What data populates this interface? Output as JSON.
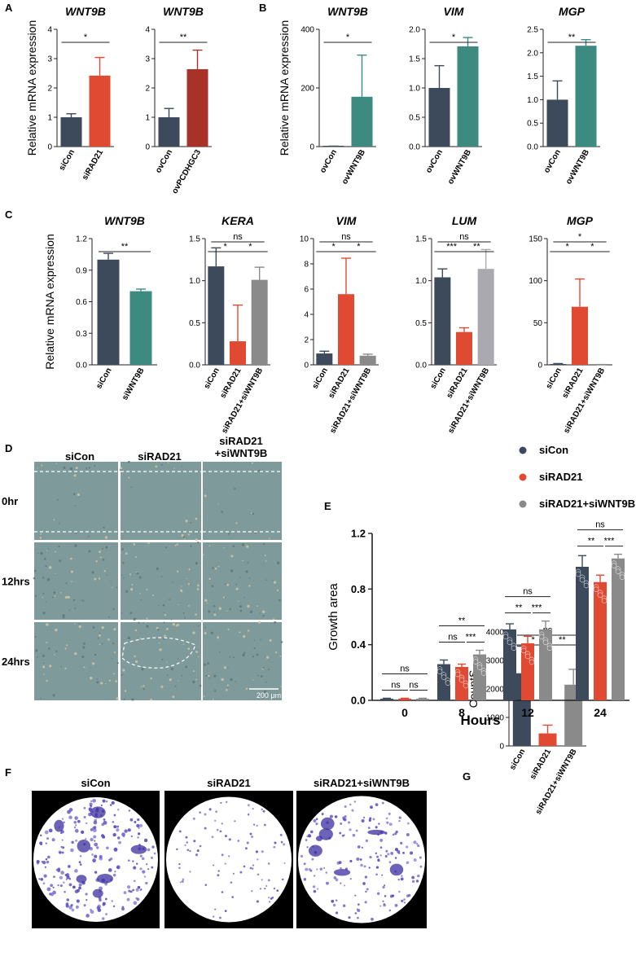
{
  "panel_letters": [
    "A",
    "B",
    "C",
    "D",
    "E",
    "F",
    "G"
  ],
  "colors": {
    "dark": "#3d4a5c",
    "red": "#e04a32",
    "darkred": "#a83228",
    "teal": "#3c8a80",
    "gray": "#8a8a8a",
    "lightgray": "#a9a9af",
    "wound_bg": "#7f9a9a",
    "crystal_bg": "#ffffff",
    "crystal_dot": "#5a4cc0"
  },
  "ylabel_mrna": "Relative mRNA expression",
  "chart_data": [
    {
      "id": "A1",
      "type": "bar",
      "title": "WNT9B",
      "categories": [
        "siCon",
        "siRAD21"
      ],
      "values": [
        1.0,
        2.42
      ],
      "errors": [
        0.12,
        0.62
      ],
      "colors": [
        "#3d4a5c",
        "#e04a32"
      ],
      "ylim": [
        0,
        4
      ],
      "yticks": [
        "0",
        "1",
        "2",
        "3",
        "4"
      ],
      "ylabel": "Relative mRNA expression",
      "sig": [
        {
          "a": 0,
          "b": 1,
          "label": "*"
        }
      ]
    },
    {
      "id": "A2",
      "type": "bar",
      "title": "WNT9B",
      "categories": [
        "ovCon",
        "ovPCDHGC3"
      ],
      "values": [
        1.0,
        2.64
      ],
      "errors": [
        0.3,
        0.65
      ],
      "colors": [
        "#3d4a5c",
        "#a83228"
      ],
      "ylim": [
        0,
        4
      ],
      "yticks": [
        "0",
        "1",
        "2",
        "3",
        "4"
      ],
      "sig": [
        {
          "a": 0,
          "b": 1,
          "label": "**"
        }
      ]
    },
    {
      "id": "B1",
      "type": "bar",
      "title": "WNT9B",
      "categories": [
        "ovCon",
        "ovWNT9B"
      ],
      "values": [
        1.0,
        170
      ],
      "errors": [
        0.5,
        142
      ],
      "colors": [
        "#3d4a5c",
        "#3c8a80"
      ],
      "ylim": [
        0,
        400
      ],
      "yticks": [
        "0",
        "200",
        "400"
      ],
      "ylabel": "Relative mRNA expression",
      "sig": [
        {
          "a": 0,
          "b": 1,
          "label": "*"
        }
      ]
    },
    {
      "id": "B2",
      "type": "bar",
      "title": "VIM",
      "categories": [
        "ovCon",
        "ovWNT9B"
      ],
      "values": [
        1.0,
        1.71
      ],
      "errors": [
        0.38,
        0.15
      ],
      "colors": [
        "#3d4a5c",
        "#3c8a80"
      ],
      "ylim": [
        0,
        2
      ],
      "yticks": [
        "0.0",
        "0.5",
        "1.0",
        "1.5",
        "2.0"
      ],
      "sig": [
        {
          "a": 0,
          "b": 1,
          "label": "*"
        }
      ]
    },
    {
      "id": "B3",
      "type": "bar",
      "title": "MGP",
      "categories": [
        "ovCon",
        "ovWNT9B"
      ],
      "values": [
        1.0,
        2.15
      ],
      "errors": [
        0.4,
        0.13
      ],
      "colors": [
        "#3d4a5c",
        "#3c8a80"
      ],
      "ylim": [
        0,
        2.5
      ],
      "yticks": [
        "0.0",
        "0.5",
        "1.0",
        "1.5",
        "2.0",
        "2.5"
      ],
      "sig": [
        {
          "a": 0,
          "b": 1,
          "label": "**"
        }
      ]
    },
    {
      "id": "C1",
      "type": "bar",
      "title": "WNT9B",
      "categories": [
        "siCon",
        "siWNT9B"
      ],
      "values": [
        1.0,
        0.7
      ],
      "errors": [
        0.06,
        0.02
      ],
      "colors": [
        "#3d4a5c",
        "#3c8a80"
      ],
      "ylim": [
        0,
        1.2
      ],
      "yticks": [
        "0.0",
        "0.3",
        "0.6",
        "0.9",
        "1.2"
      ],
      "ylabel": "Relative mRNA expression",
      "sig": [
        {
          "a": 0,
          "b": 1,
          "label": "**"
        }
      ]
    },
    {
      "id": "C2",
      "type": "bar",
      "title": "KERA",
      "categories": [
        "siCon",
        "siRAD21",
        "siRAD21+siWNT9B"
      ],
      "values": [
        1.17,
        0.28,
        1.01
      ],
      "errors": [
        0.22,
        0.43,
        0.15
      ],
      "colors": [
        "#3d4a5c",
        "#e04a32",
        "#8a8a8a"
      ],
      "ylim": [
        0,
        1.5
      ],
      "yticks": [
        "0.0",
        "0.5",
        "1.0",
        "1.5"
      ],
      "sig": [
        {
          "a": 0,
          "b": 1,
          "label": "*"
        },
        {
          "a": 1,
          "b": 2,
          "label": "*"
        },
        {
          "a": 0,
          "b": 2,
          "label": "ns"
        }
      ]
    },
    {
      "id": "C3",
      "type": "bar",
      "title": "VIM",
      "categories": [
        "siCon",
        "siRAD21",
        "siRAD21+siWNT9B"
      ],
      "values": [
        0.9,
        5.6,
        0.72
      ],
      "errors": [
        0.18,
        2.85,
        0.12
      ],
      "colors": [
        "#3d4a5c",
        "#e04a32",
        "#8a8a8a"
      ],
      "ylim": [
        0,
        10
      ],
      "yticks": [
        "0",
        "2",
        "4",
        "6",
        "8",
        "10"
      ],
      "sig": [
        {
          "a": 0,
          "b": 1,
          "label": "*"
        },
        {
          "a": 1,
          "b": 2,
          "label": "*"
        },
        {
          "a": 0,
          "b": 2,
          "label": "ns"
        }
      ]
    },
    {
      "id": "C4",
      "type": "bar",
      "title": "LUM",
      "categories": [
        "siCon",
        "siRAD21",
        "siRAD21+siWNT9B"
      ],
      "values": [
        1.04,
        0.39,
        1.14
      ],
      "errors": [
        0.1,
        0.05,
        0.23
      ],
      "colors": [
        "#3d4a5c",
        "#e04a32",
        "#a9a9af"
      ],
      "ylim": [
        0,
        1.5
      ],
      "yticks": [
        "0.0",
        "0.5",
        "1.0",
        "1.5"
      ],
      "sig": [
        {
          "a": 0,
          "b": 1,
          "label": "***"
        },
        {
          "a": 1,
          "b": 2,
          "label": "**"
        },
        {
          "a": 0,
          "b": 2,
          "label": "ns"
        }
      ]
    },
    {
      "id": "C5",
      "type": "bar",
      "title": "MGP",
      "categories": [
        "siCon",
        "siRAD21",
        "siRAD21+siWNT9B"
      ],
      "values": [
        1.0,
        69,
        0.3
      ],
      "errors": [
        0.5,
        33,
        0.1
      ],
      "colors": [
        "#3d4a5c",
        "#e04a32",
        "#8a8a8a"
      ],
      "ylim": [
        0,
        150
      ],
      "yticks": [
        "0",
        "50",
        "100",
        "150"
      ],
      "sig": [
        {
          "a": 0,
          "b": 1,
          "label": "*"
        },
        {
          "a": 1,
          "b": 2,
          "label": "*"
        },
        {
          "a": 0,
          "b": 2,
          "label": "*"
        }
      ]
    },
    {
      "id": "E",
      "type": "bar",
      "categories": [
        "0",
        "8",
        "12",
        "24"
      ],
      "xlabel": "Hours",
      "ylabel": "Growth area",
      "ylim": [
        0,
        1.2
      ],
      "yticks": [
        "0.0",
        "0.4",
        "0.8",
        "1.2"
      ],
      "series": [
        {
          "name": "siCon",
          "color": "#3d4a5c",
          "values": [
            0.01,
            0.26,
            0.51,
            0.96
          ],
          "errors": [
            0.005,
            0.03,
            0.04,
            0.08
          ]
        },
        {
          "name": "siRAD21",
          "color": "#e04a32",
          "values": [
            0.01,
            0.24,
            0.41,
            0.85
          ],
          "errors": [
            0.005,
            0.02,
            0.05,
            0.05
          ]
        },
        {
          "name": "siRAD21+siWNT9B",
          "color": "#8a8a8a",
          "values": [
            0.01,
            0.33,
            0.51,
            1.02
          ],
          "errors": [
            0.005,
            0.03,
            0.06,
            0.03
          ]
        }
      ],
      "sig": [
        [
          "ns",
          "ns",
          "ns"
        ],
        [
          "ns",
          "***",
          "**"
        ],
        [
          "**",
          "***",
          "ns"
        ],
        [
          "**",
          "***",
          "ns"
        ]
      ],
      "legend": "top-right"
    },
    {
      "id": "G",
      "type": "bar",
      "categories": [
        "siCon",
        "siRAD21",
        "siRAD21+siWNT9B"
      ],
      "values": [
        2550,
        440,
        2150
      ],
      "errors": [
        950,
        290,
        540
      ],
      "colors": [
        "#3d4a5c",
        "#e04a32",
        "#8a8a8a"
      ],
      "ylim": [
        0,
        4000
      ],
      "yticks": [
        "0",
        "1000",
        "2000",
        "3000",
        "4000"
      ],
      "ylabel": "CountS",
      "sig": [
        {
          "a": 0,
          "b": 1,
          "label": "*"
        },
        {
          "a": 1,
          "b": 2,
          "label": "**"
        },
        {
          "a": 0,
          "b": 2,
          "label": "ns"
        }
      ]
    }
  ],
  "wound": {
    "columns": [
      "siCon",
      "siRAD21",
      "+siWNT9B"
    ],
    "column_top_extra": "siRAD21",
    "rows": [
      "0hr",
      "12hrs",
      "24hrs"
    ],
    "scalebar": "200 μm"
  },
  "crystal": {
    "labels": [
      "siCon",
      "siRAD21",
      "siRAD21+siWNT9B"
    ],
    "density": [
      0.9,
      0.35,
      0.65
    ]
  }
}
